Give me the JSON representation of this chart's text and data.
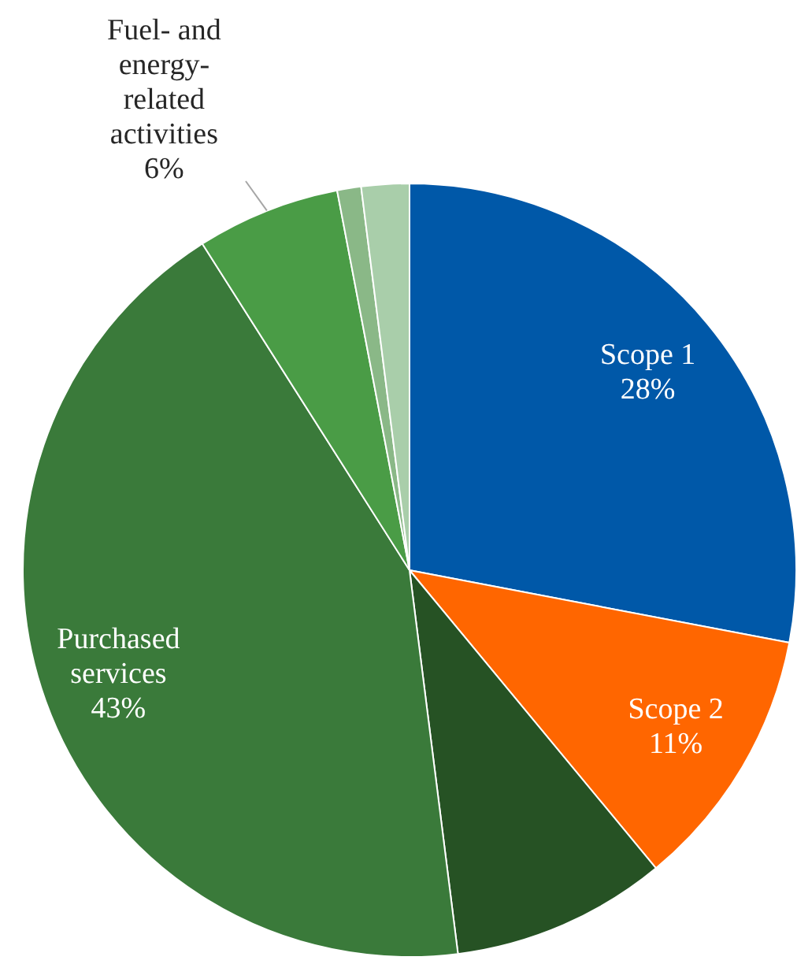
{
  "chart_data": {
    "type": "pie",
    "categories": [
      "Scope 1",
      "Scope 2",
      null,
      "Purchased services",
      "Fuel- and energy-related activities",
      null,
      null
    ],
    "values": [
      28,
      11,
      9,
      43,
      6,
      1,
      2
    ],
    "colors": [
      "#0058a8",
      "#ff6600",
      "#265224",
      "#3a7a3a",
      "#4a9c46",
      "#8ab887",
      "#a9ceaa"
    ],
    "value_labels": [
      "28%",
      "11%",
      null,
      "43%",
      "6%",
      null,
      null
    ],
    "legend": false
  }
}
